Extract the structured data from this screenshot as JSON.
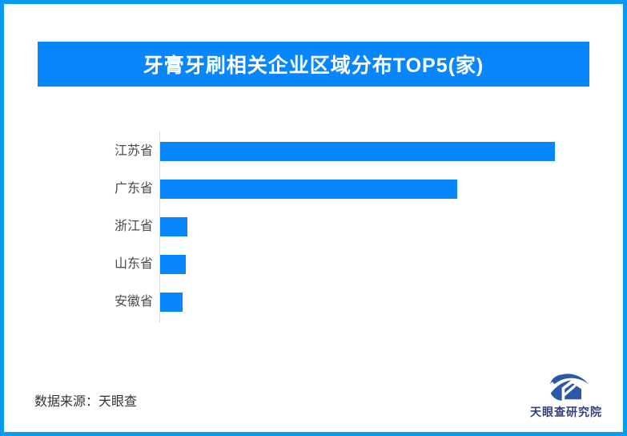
{
  "frame": {
    "border_color": "#0a9af2",
    "background_color": "#ffffff"
  },
  "header": {
    "title": "牙膏牙刷相关企业区域分布TOP5(家)",
    "bg_color": "#0787fb",
    "text_color": "#ffffff"
  },
  "chart_data": {
    "type": "bar",
    "orientation": "horizontal",
    "title": "牙膏牙刷相关企业区域分布TOP5(家)",
    "categories": [
      "江苏省",
      "广东省",
      "浙江省",
      "山东省",
      "安徽省"
    ],
    "values_relative": [
      493,
      371,
      34,
      32,
      28
    ],
    "value_labels_visible": false,
    "axis_tick_labels_visible": false,
    "grid": false,
    "legend": false,
    "bar_color": "#0787fb",
    "note": "No numeric data labels or axis scale shown in the image; values are relative bar lengths measured in pixels from the baseline."
  },
  "footer": {
    "source_text": "数据来源：天眼查"
  },
  "logo": {
    "text": "天眼查研究院",
    "text_color": "#35417c",
    "icon_color": "#2b59a8",
    "icon": "tianyancha-eye-house-icon"
  }
}
